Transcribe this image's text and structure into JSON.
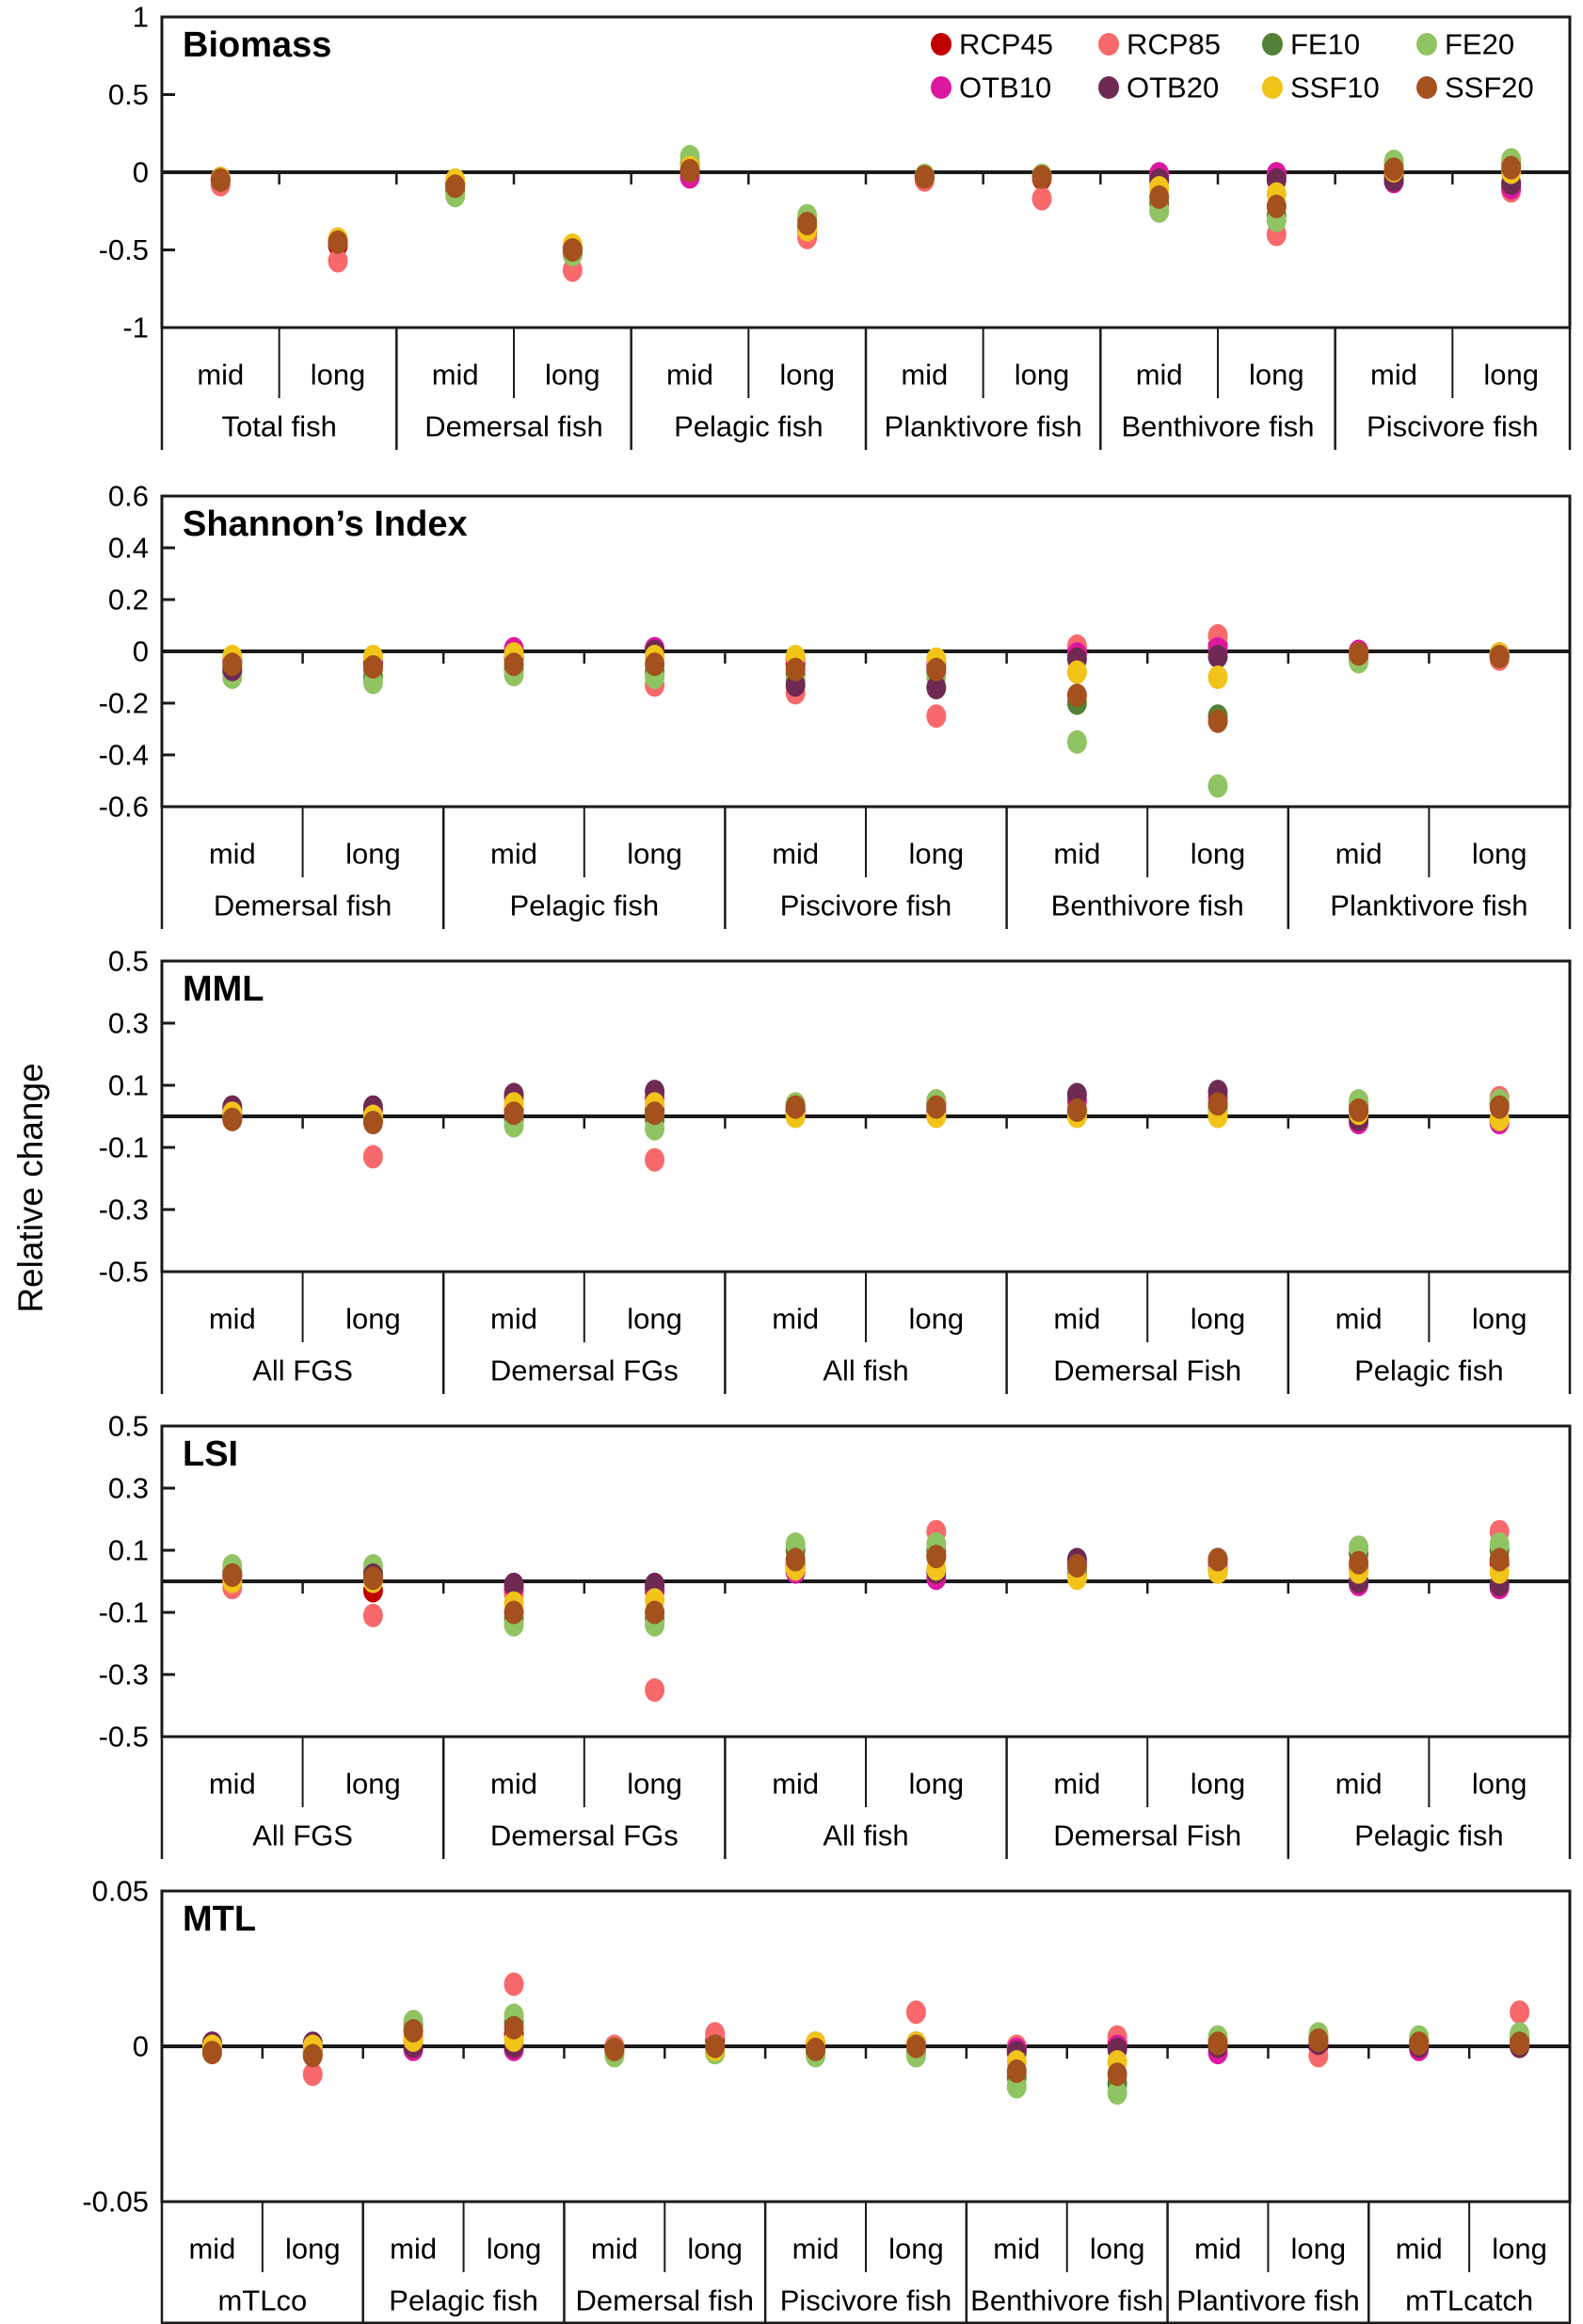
{
  "figure": {
    "y_axis_label": "Relative change",
    "sub_labels": [
      "mid",
      "long"
    ],
    "series": [
      {
        "name": "RCP45",
        "color": "#C00000"
      },
      {
        "name": "RCP85",
        "color": "#F8696B"
      },
      {
        "name": "FE10",
        "color": "#538135"
      },
      {
        "name": "FE20",
        "color": "#90C462"
      },
      {
        "name": "OTB10",
        "color": "#DD18A0"
      },
      {
        "name": "OTB20",
        "color": "#6E2A52"
      },
      {
        "name": "SSF10",
        "color": "#F2C318"
      },
      {
        "name": "SSF20",
        "color": "#A4511E"
      }
    ]
  },
  "chart_data": [
    {
      "type": "scatter",
      "title": "Biomass",
      "ylim": [
        -1,
        1
      ],
      "yticks": [
        1,
        0.5,
        0,
        -0.5,
        -1
      ],
      "ytick_labels": [
        "1",
        "0.5",
        "0",
        "-0.5",
        "-1"
      ],
      "legend": true,
      "categories": [
        "Total fish",
        "Demersal fish",
        "Pelagic fish",
        "Planktivore fish",
        "Benthivore fish",
        "Piscivore fish"
      ],
      "series": {
        "RCP45": [
          -0.05,
          -0.47,
          -0.08,
          -0.52,
          0.0,
          -0.38,
          -0.03,
          -0.04,
          -0.02,
          -0.03,
          -0.02,
          -0.08
        ],
        "RCP85": [
          -0.08,
          -0.57,
          -0.12,
          -0.63,
          -0.02,
          -0.42,
          -0.05,
          -0.17,
          -0.04,
          -0.4,
          -0.04,
          -0.12
        ],
        "FE10": [
          -0.05,
          -0.45,
          -0.12,
          -0.52,
          0.05,
          -0.3,
          -0.03,
          -0.03,
          -0.2,
          -0.28,
          0.05,
          0.06
        ],
        "FE20": [
          -0.04,
          -0.44,
          -0.15,
          -0.53,
          0.1,
          -0.28,
          -0.02,
          -0.02,
          -0.25,
          -0.31,
          0.07,
          0.08
        ],
        "OTB10": [
          -0.04,
          -0.45,
          -0.07,
          -0.49,
          -0.03,
          -0.36,
          -0.03,
          -0.03,
          -0.01,
          -0.01,
          -0.06,
          -0.1
        ],
        "OTB20": [
          -0.05,
          -0.44,
          -0.07,
          -0.48,
          0.02,
          -0.35,
          -0.03,
          -0.03,
          -0.05,
          -0.05,
          -0.05,
          -0.07
        ],
        "SSF10": [
          -0.04,
          -0.43,
          -0.05,
          -0.47,
          0.03,
          -0.37,
          -0.03,
          -0.03,
          -0.1,
          -0.14,
          0.01,
          0.0
        ],
        "SSF20": [
          -0.05,
          -0.45,
          -0.09,
          -0.5,
          0.01,
          -0.33,
          -0.03,
          -0.03,
          -0.16,
          -0.22,
          0.02,
          0.03
        ]
      }
    },
    {
      "type": "scatter",
      "title": "Shannon’s Index",
      "ylim": [
        -0.6,
        0.6
      ],
      "yticks": [
        0.6,
        0.4,
        0.2,
        0,
        -0.2,
        -0.4,
        -0.6
      ],
      "ytick_labels": [
        "0.6",
        "0.4",
        "0.2",
        "0",
        "-0.2",
        "-0.4",
        "-0.6"
      ],
      "legend": false,
      "categories": [
        "Demersal fish",
        "Pelagic fish",
        "Piscivore fish",
        "Benthivore fish",
        "Planktivore fish"
      ],
      "series": {
        "RCP45": [
          -0.04,
          -0.05,
          0.0,
          0.01,
          -0.05,
          -0.06,
          0.0,
          0.02,
          -0.01,
          -0.02
        ],
        "RCP85": [
          -0.06,
          -0.07,
          -0.03,
          -0.13,
          -0.16,
          -0.25,
          0.02,
          0.06,
          0.0,
          -0.03
        ],
        "FE10": [
          -0.08,
          -0.1,
          -0.07,
          -0.08,
          -0.09,
          -0.08,
          -0.2,
          -0.25,
          -0.03,
          -0.02
        ],
        "FE20": [
          -0.1,
          -0.12,
          -0.09,
          -0.1,
          -0.11,
          -0.1,
          -0.35,
          -0.52,
          -0.04,
          -0.02
        ],
        "OTB10": [
          -0.03,
          -0.04,
          0.01,
          0.01,
          -0.03,
          -0.04,
          -0.01,
          0.01,
          0.0,
          -0.01
        ],
        "OTB20": [
          -0.07,
          -0.05,
          -0.02,
          0.0,
          -0.13,
          -0.14,
          -0.03,
          -0.02,
          -0.01,
          -0.01
        ],
        "SSF10": [
          -0.02,
          -0.02,
          -0.01,
          -0.02,
          -0.02,
          -0.03,
          -0.08,
          -0.1,
          -0.01,
          -0.01
        ],
        "SSF20": [
          -0.05,
          -0.06,
          -0.05,
          -0.05,
          -0.07,
          -0.07,
          -0.17,
          -0.27,
          -0.01,
          -0.02
        ]
      }
    },
    {
      "type": "scatter",
      "title": "MML",
      "ylim": [
        -0.5,
        0.5
      ],
      "yticks": [
        0.5,
        0.3,
        0.1,
        -0.1,
        -0.3,
        -0.5
      ],
      "ytick_labels": [
        "0.5",
        "0.3",
        "0.1",
        "-0.1",
        "-0.3",
        "-0.5"
      ],
      "legend": false,
      "categories": [
        "All FGS",
        "Demersal FGs",
        "All fish",
        "Demersal Fish",
        "Pelagic fish"
      ],
      "series": {
        "RCP45": [
          0.0,
          -0.01,
          0.02,
          0.02,
          0.02,
          0.04,
          0.02,
          0.03,
          0.02,
          0.04
        ],
        "RCP85": [
          -0.01,
          -0.13,
          0.01,
          -0.14,
          0.02,
          0.05,
          0.01,
          0.02,
          0.03,
          0.06
        ],
        "FE10": [
          0.01,
          0.0,
          -0.01,
          -0.01,
          0.03,
          0.04,
          0.02,
          0.02,
          0.04,
          0.04
        ],
        "FE20": [
          0.0,
          -0.01,
          -0.03,
          -0.04,
          0.04,
          0.05,
          0.01,
          0.02,
          0.05,
          0.05
        ],
        "OTB10": [
          0.02,
          0.02,
          0.06,
          0.06,
          0.01,
          0.01,
          0.05,
          0.06,
          -0.02,
          -0.02
        ],
        "OTB20": [
          0.03,
          0.03,
          0.07,
          0.08,
          0.02,
          0.02,
          0.07,
          0.08,
          -0.01,
          -0.01
        ],
        "SSF10": [
          0.01,
          0.0,
          0.04,
          0.04,
          0.0,
          0.0,
          0.0,
          0.0,
          0.01,
          -0.01
        ],
        "SSF20": [
          -0.01,
          -0.02,
          0.01,
          0.01,
          0.03,
          0.03,
          0.02,
          0.04,
          0.02,
          0.03
        ]
      }
    },
    {
      "type": "scatter",
      "title": "LSI",
      "ylim": [
        -0.5,
        0.5
      ],
      "yticks": [
        0.5,
        0.3,
        0.1,
        -0.1,
        -0.3,
        -0.5
      ],
      "ytick_labels": [
        "0.5",
        "0.3",
        "0.1",
        "-0.1",
        "-0.3",
        "-0.5"
      ],
      "legend": false,
      "categories": [
        "All FGS",
        "Demersal FGs",
        "All fish",
        "Demersal Fish",
        "Pelagic fish"
      ],
      "series": {
        "RCP45": [
          0.0,
          -0.03,
          -0.03,
          -0.03,
          0.05,
          0.08,
          0.03,
          0.04,
          0.04,
          0.06
        ],
        "RCP85": [
          -0.02,
          -0.11,
          -0.04,
          -0.35,
          0.06,
          0.16,
          0.02,
          0.03,
          0.05,
          0.16
        ],
        "FE10": [
          0.03,
          0.03,
          -0.12,
          -0.12,
          0.1,
          0.1,
          0.03,
          0.04,
          0.09,
          0.1
        ],
        "FE20": [
          0.05,
          0.05,
          -0.14,
          -0.14,
          0.12,
          0.12,
          0.04,
          0.05,
          0.11,
          0.12
        ],
        "OTB10": [
          0.01,
          0.01,
          -0.02,
          -0.02,
          0.03,
          0.01,
          0.06,
          0.06,
          -0.01,
          -0.02
        ],
        "OTB20": [
          0.02,
          0.02,
          -0.01,
          -0.01,
          0.04,
          0.03,
          0.07,
          0.07,
          0.0,
          -0.01
        ],
        "SSF10": [
          0.0,
          0.0,
          -0.07,
          -0.06,
          0.04,
          0.04,
          0.01,
          0.03,
          0.03,
          0.03
        ],
        "SSF20": [
          0.02,
          0.01,
          -0.1,
          -0.1,
          0.07,
          0.08,
          0.05,
          0.07,
          0.06,
          0.07
        ]
      }
    },
    {
      "type": "scatter",
      "title": "MTL",
      "ylim": [
        -0.05,
        0.05
      ],
      "yticks": [
        0.05,
        0,
        -0.05
      ],
      "ytick_labels": [
        "0.05",
        "0",
        "-0.05"
      ],
      "legend": false,
      "bottom_border": true,
      "categories": [
        "mTLco",
        "Pelagic fish",
        "Demersal fish",
        "Piscivore fish",
        "Benthivore fish",
        "Plantivore fish",
        "mTLcatch"
      ],
      "series": {
        "RCP45": [
          0.0,
          -0.001,
          0.002,
          0.004,
          -0.001,
          0.002,
          0.001,
          0.0,
          -0.001,
          0.001,
          0.001,
          0.0,
          0.001,
          0.002
        ],
        "RCP85": [
          0.001,
          -0.009,
          0.003,
          0.02,
          0.0,
          0.004,
          0.001,
          0.011,
          0.0,
          0.003,
          0.002,
          -0.003,
          0.002,
          0.011
        ],
        "FE10": [
          -0.001,
          -0.002,
          0.007,
          0.008,
          -0.002,
          -0.002,
          -0.002,
          -0.002,
          -0.01,
          -0.012,
          0.002,
          0.003,
          0.002,
          0.003
        ],
        "FE20": [
          -0.001,
          -0.002,
          0.008,
          0.01,
          -0.003,
          -0.002,
          -0.003,
          -0.003,
          -0.013,
          -0.015,
          0.003,
          0.004,
          0.003,
          0.004
        ],
        "OTB10": [
          0.001,
          0.0,
          -0.001,
          -0.001,
          -0.001,
          0.0,
          0.0,
          0.001,
          -0.001,
          0.0,
          -0.002,
          0.001,
          -0.001,
          0.0
        ],
        "OTB20": [
          0.001,
          0.001,
          0.0,
          0.0,
          -0.001,
          0.0,
          0.0,
          0.001,
          -0.002,
          -0.001,
          0.0,
          0.001,
          0.0,
          0.0
        ],
        "SSF10": [
          0.0,
          0.0,
          0.002,
          0.002,
          -0.001,
          -0.001,
          0.001,
          0.001,
          -0.005,
          -0.005,
          0.001,
          0.002,
          0.001,
          0.001
        ],
        "SSF20": [
          -0.002,
          -0.003,
          0.005,
          0.006,
          -0.001,
          0.0,
          -0.001,
          0.0,
          -0.008,
          -0.009,
          0.001,
          0.002,
          0.001,
          0.001
        ]
      }
    }
  ]
}
